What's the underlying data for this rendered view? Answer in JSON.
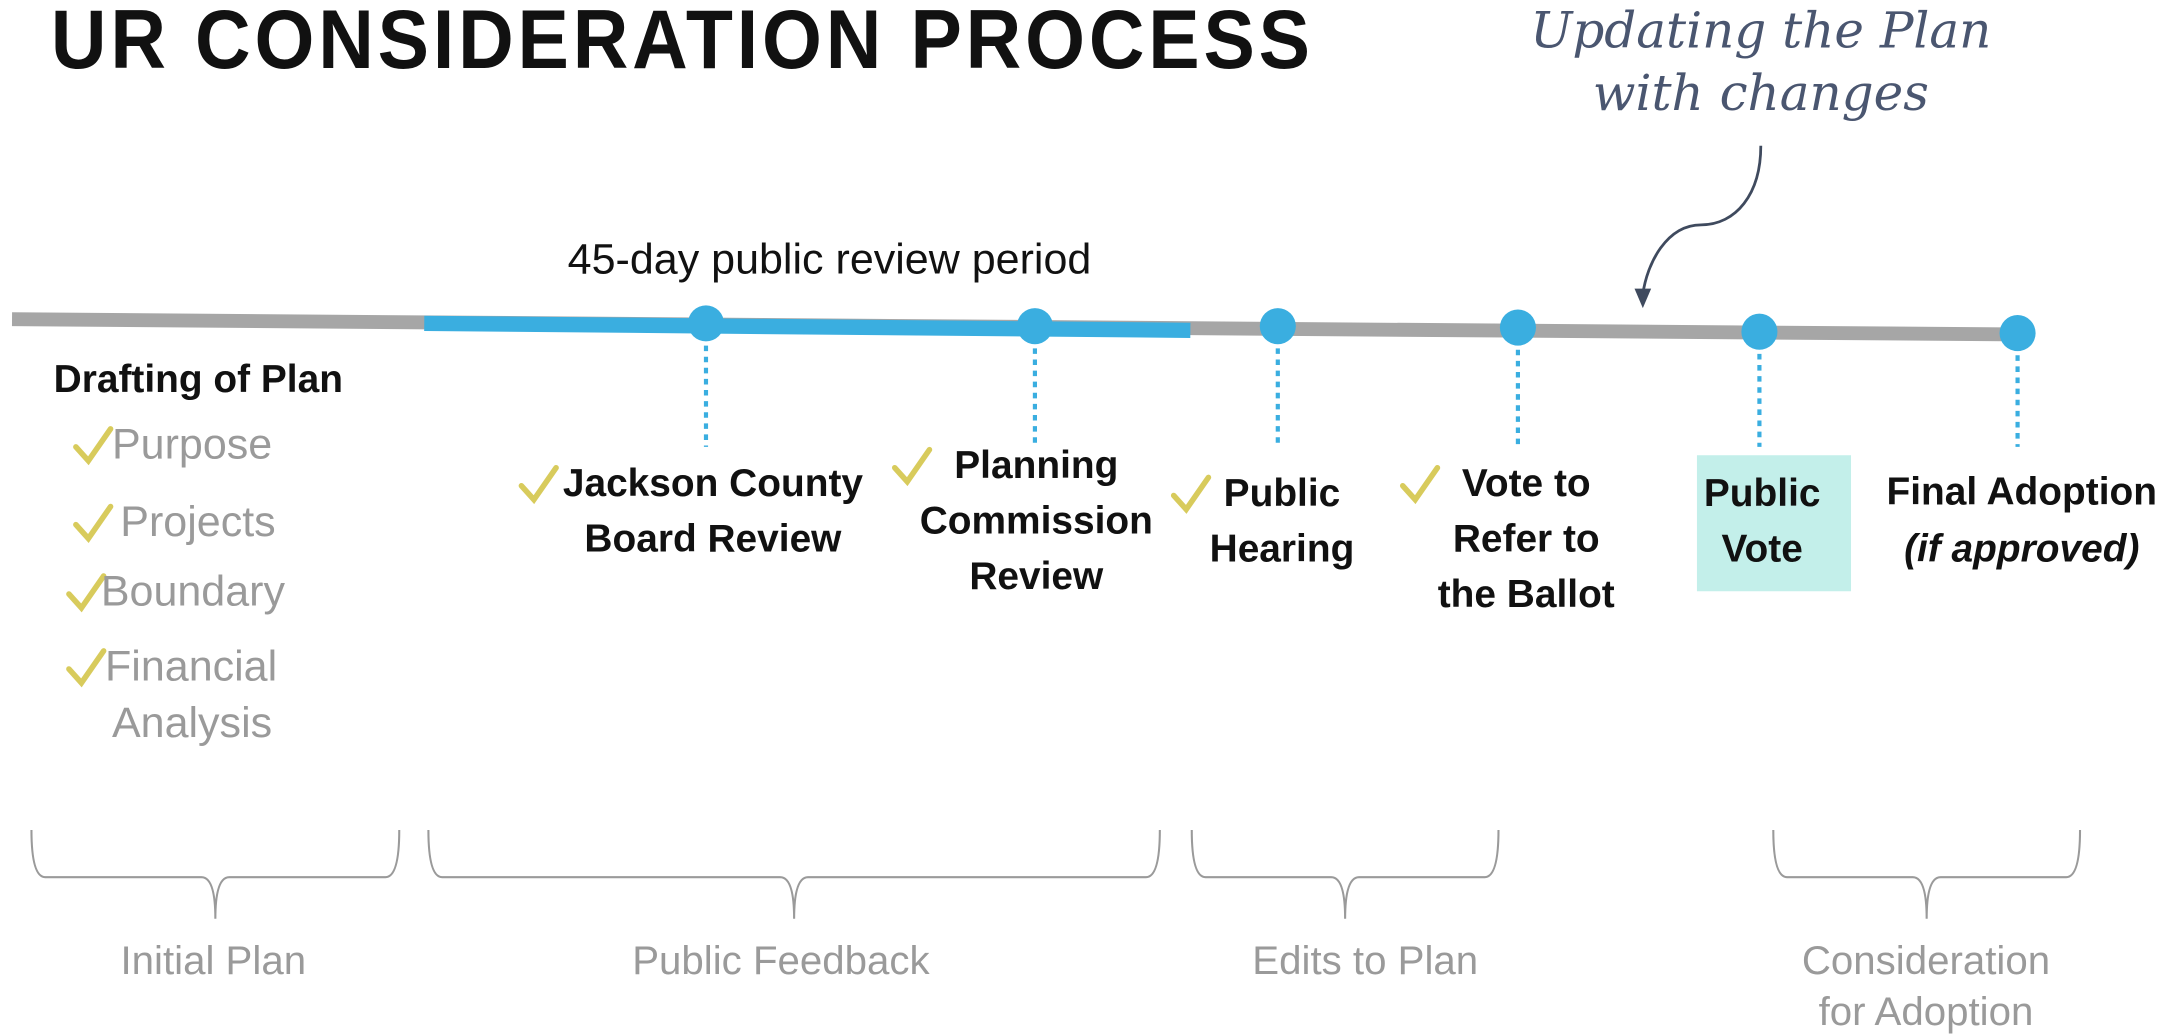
{
  "title": "UR CONSIDERATION PROCESS",
  "annotation": [
    "Updating the Plan",
    "with changes"
  ],
  "review_period": "45-day public review period",
  "drafting": {
    "heading": "Drafting of Plan",
    "items": [
      [
        "Purpose"
      ],
      [
        "Projects"
      ],
      [
        "Boundary"
      ],
      [
        "Financial",
        "Analysis"
      ]
    ]
  },
  "steps": [
    {
      "lines": [
        "Jackson County",
        "Board Review"
      ],
      "checked": true
    },
    {
      "lines": [
        "Planning",
        "Commission",
        "Review"
      ],
      "checked": true
    },
    {
      "lines": [
        "Public",
        "Hearing"
      ],
      "checked": true
    },
    {
      "lines": [
        "Vote to",
        "Refer to",
        "the Ballot"
      ],
      "checked": true
    },
    {
      "lines": [
        "Public",
        "Vote"
      ],
      "checked": false,
      "highlighted": true
    },
    {
      "lines": [
        "Final Adoption"
      ],
      "note": "(if approved)",
      "checked": false
    }
  ],
  "phases": [
    [
      "Initial Plan"
    ],
    [
      "Public Feedback"
    ],
    [
      "Edits to Plan"
    ],
    [
      "Consideration",
      "for Adoption"
    ]
  ]
}
